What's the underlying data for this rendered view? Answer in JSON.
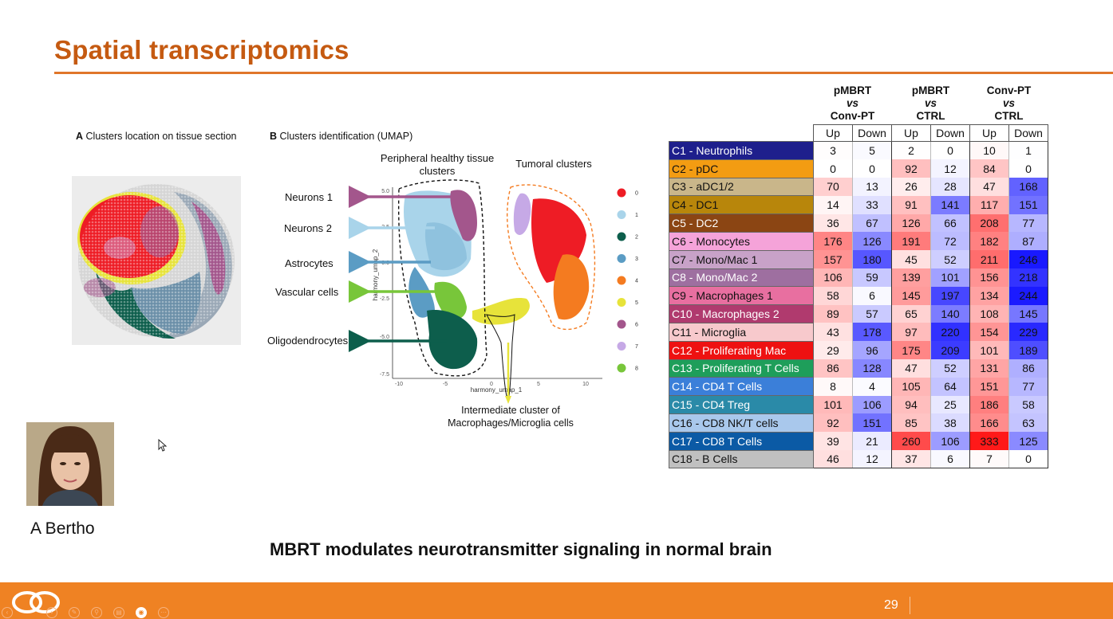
{
  "slide": {
    "title": "Spatial transcriptomics",
    "subtitle": "MBRT modulates neurotransmitter signaling in normal brain",
    "page_number": "29",
    "presenter": "A Bertho"
  },
  "panel_a": {
    "letter": "A",
    "text": "Clusters location on tissue section"
  },
  "panel_b": {
    "letter": "B",
    "text": "Clusters identification (UMAP)",
    "group_healthy_line1": "Peripheral healthy tissue",
    "group_healthy_line2": "clusters",
    "group_tumoral": "Tumoral clusters",
    "cell_labels": [
      "Neurons 1",
      "Neurons 2",
      "Astrocytes",
      "Vascular cells",
      "Oligodendrocytes"
    ],
    "caption_line1": "Intermediate cluster of",
    "caption_line2": "Macrophages/Microglia cells",
    "x_axis_label": "harmony_umap_1",
    "y_axis_label": "harmony_umap_2",
    "x_ticks": [
      "-10",
      "-5",
      "0",
      "5",
      "10"
    ],
    "y_ticks": [
      "5.0",
      "2.5",
      "0.0",
      "-2.5",
      "-5.0",
      "-7.5"
    ],
    "legend": [
      {
        "label": "0",
        "color": "#ee1c25"
      },
      {
        "label": "1",
        "color": "#a9d4ea"
      },
      {
        "label": "2",
        "color": "#0d5e4c"
      },
      {
        "label": "3",
        "color": "#5b9cc4"
      },
      {
        "label": "4",
        "color": "#f47b20"
      },
      {
        "label": "5",
        "color": "#e7e33a"
      },
      {
        "label": "6",
        "color": "#a3568c"
      },
      {
        "label": "7",
        "color": "#c6a9e6"
      },
      {
        "label": "8",
        "color": "#78c63a"
      }
    ]
  },
  "table": {
    "comparisons": [
      {
        "line1": "pMBRT",
        "line2": "vs",
        "line3": "Conv-PT"
      },
      {
        "line1": "pMBRT",
        "line2": "vs",
        "line3": "CTRL"
      },
      {
        "line1": "Conv-PT",
        "line2": "vs",
        "line3": "CTRL"
      }
    ],
    "subheaders": [
      "Up",
      "Down"
    ],
    "rows": [
      {
        "cluster": "C1 - Neutrophils",
        "color": "#1e1f8c",
        "text_color": "#ffffff",
        "values": [
          3,
          5,
          2,
          0,
          10,
          1
        ]
      },
      {
        "cluster": "C2 - pDC",
        "color": "#f39c12",
        "text_color": "#111111",
        "values": [
          0,
          0,
          92,
          12,
          84,
          0
        ]
      },
      {
        "cluster": "C3 - aDC1/2",
        "color": "#c9b68a",
        "text_color": "#111111",
        "values": [
          70,
          13,
          26,
          28,
          47,
          168
        ]
      },
      {
        "cluster": "C4 - DC1",
        "color": "#b8860b",
        "text_color": "#111111",
        "values": [
          14,
          33,
          91,
          141,
          117,
          151
        ]
      },
      {
        "cluster": "C5 - DC2",
        "color": "#8b4513",
        "text_color": "#ffffff",
        "values": [
          36,
          67,
          126,
          66,
          208,
          77
        ]
      },
      {
        "cluster": "C6 - Monocytes",
        "color": "#f5a3d9",
        "text_color": "#111111",
        "values": [
          176,
          126,
          191,
          72,
          182,
          87
        ]
      },
      {
        "cluster": "C7 - Mono/Mac 1",
        "color": "#c8a2c8",
        "text_color": "#111111",
        "values": [
          157,
          180,
          45,
          52,
          211,
          246
        ]
      },
      {
        "cluster": "C8 - Mono/Mac 2",
        "color": "#9e6fa0",
        "text_color": "#ffffff",
        "values": [
          106,
          59,
          139,
          101,
          156,
          218
        ]
      },
      {
        "cluster": "C9 - Macrophages 1",
        "color": "#e86fa0",
        "text_color": "#111111",
        "values": [
          58,
          6,
          145,
          197,
          134,
          244
        ]
      },
      {
        "cluster": "C10 - Macrophages 2",
        "color": "#b03a6e",
        "text_color": "#ffffff",
        "values": [
          89,
          57,
          65,
          140,
          108,
          145
        ]
      },
      {
        "cluster": "C11 - Microglia",
        "color": "#f7c9cc",
        "text_color": "#111111",
        "values": [
          43,
          178,
          97,
          220,
          154,
          229
        ]
      },
      {
        "cluster": "C12 - Proliferating Mac",
        "color": "#ee1111",
        "text_color": "#ffffff",
        "values": [
          29,
          96,
          175,
          209,
          101,
          189
        ]
      },
      {
        "cluster": "C13 - Proliferating T Cells",
        "color": "#1e9e5a",
        "text_color": "#ffffff",
        "values": [
          86,
          128,
          47,
          52,
          131,
          86
        ]
      },
      {
        "cluster": "C14 - CD4 T Cells",
        "color": "#3b7fd9",
        "text_color": "#ffffff",
        "values": [
          8,
          4,
          105,
          64,
          151,
          77
        ]
      },
      {
        "cluster": "C15 - CD4 Treg",
        "color": "#2a8aa8",
        "text_color": "#ffffff",
        "values": [
          101,
          106,
          94,
          25,
          186,
          58
        ]
      },
      {
        "cluster": "C16 - CD8 NK/T cells",
        "color": "#a9c8ec",
        "text_color": "#111111",
        "values": [
          92,
          151,
          85,
          38,
          166,
          63
        ]
      },
      {
        "cluster": "C17 - CD8 T Cells",
        "color": "#0b5aa5",
        "text_color": "#ffffff",
        "values": [
          39,
          21,
          260,
          106,
          333,
          125
        ]
      },
      {
        "cluster": "C18 - B Cells",
        "color": "#c0c0c0",
        "text_color": "#111111",
        "values": [
          46,
          12,
          37,
          6,
          7,
          0
        ]
      }
    ]
  }
}
